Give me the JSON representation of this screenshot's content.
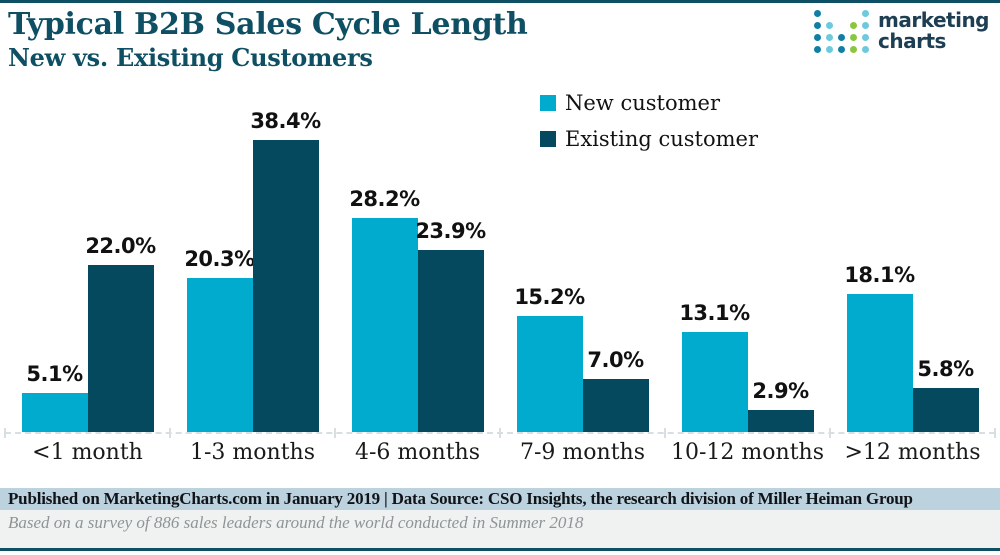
{
  "header": {
    "title": "Typical B2B Sales Cycle Length",
    "subtitle": "New vs. Existing Customers"
  },
  "logo": {
    "line1": "marketing",
    "line2": "charts",
    "text_color": "#1d3e53",
    "dot_colors": {
      "dark": "#117fa4",
      "light": "#6ec9dd",
      "green": "#8cc63f"
    },
    "dot_columns": [
      {
        "color": "dark",
        "rows": [
          0,
          1,
          2,
          3
        ]
      },
      {
        "color": "light",
        "rows": [
          1,
          2,
          3
        ]
      },
      {
        "color": "dark",
        "rows": [
          2,
          3
        ]
      },
      {
        "color": "green",
        "rows": [
          1,
          2,
          3
        ]
      },
      {
        "color": "light",
        "rows": [
          0,
          1,
          2,
          3
        ]
      }
    ]
  },
  "legend": [
    {
      "label": "New customer",
      "color": "#00abce"
    },
    {
      "label": "Existing customer",
      "color": "#04495e"
    }
  ],
  "chart_data": {
    "type": "bar",
    "title": "Typical B2B Sales Cycle Length",
    "subtitle": "New vs. Existing Customers",
    "categories": [
      "<1 month",
      "1-3 months",
      "4-6 months",
      "7-9 months",
      "10-12 months",
      ">12 months"
    ],
    "series": [
      {
        "name": "New customer",
        "color": "#00abce",
        "values": [
          5.1,
          20.3,
          28.2,
          15.2,
          13.1,
          18.1
        ]
      },
      {
        "name": "Existing customer",
        "color": "#04495e",
        "values": [
          22.0,
          38.4,
          23.9,
          7.0,
          2.9,
          5.8
        ]
      }
    ],
    "value_suffix": "%",
    "value_decimals": 1,
    "xlabel": "",
    "ylabel": "",
    "ylim": [
      0,
      40
    ],
    "grid": false,
    "axis_line_style": "dashed",
    "legend_position": "top-center",
    "data_labels": true
  },
  "footer": {
    "line1": "Published on MarketingCharts.com in January 2019 | Data Source: CSO Insights, the research division of Miller Heiman Group",
    "line2": "Based on a survey of 886 sales leaders around the world conducted in Summer 2018"
  },
  "colors": {
    "accent_dark_teal": "#0e4f63",
    "bar_new": "#00abce",
    "bar_existing": "#04495e",
    "axis_gray": "#d7dfe3",
    "footer_band1_bg": "#bcd2de",
    "footer_band2_bg": "#f0f2f2"
  }
}
